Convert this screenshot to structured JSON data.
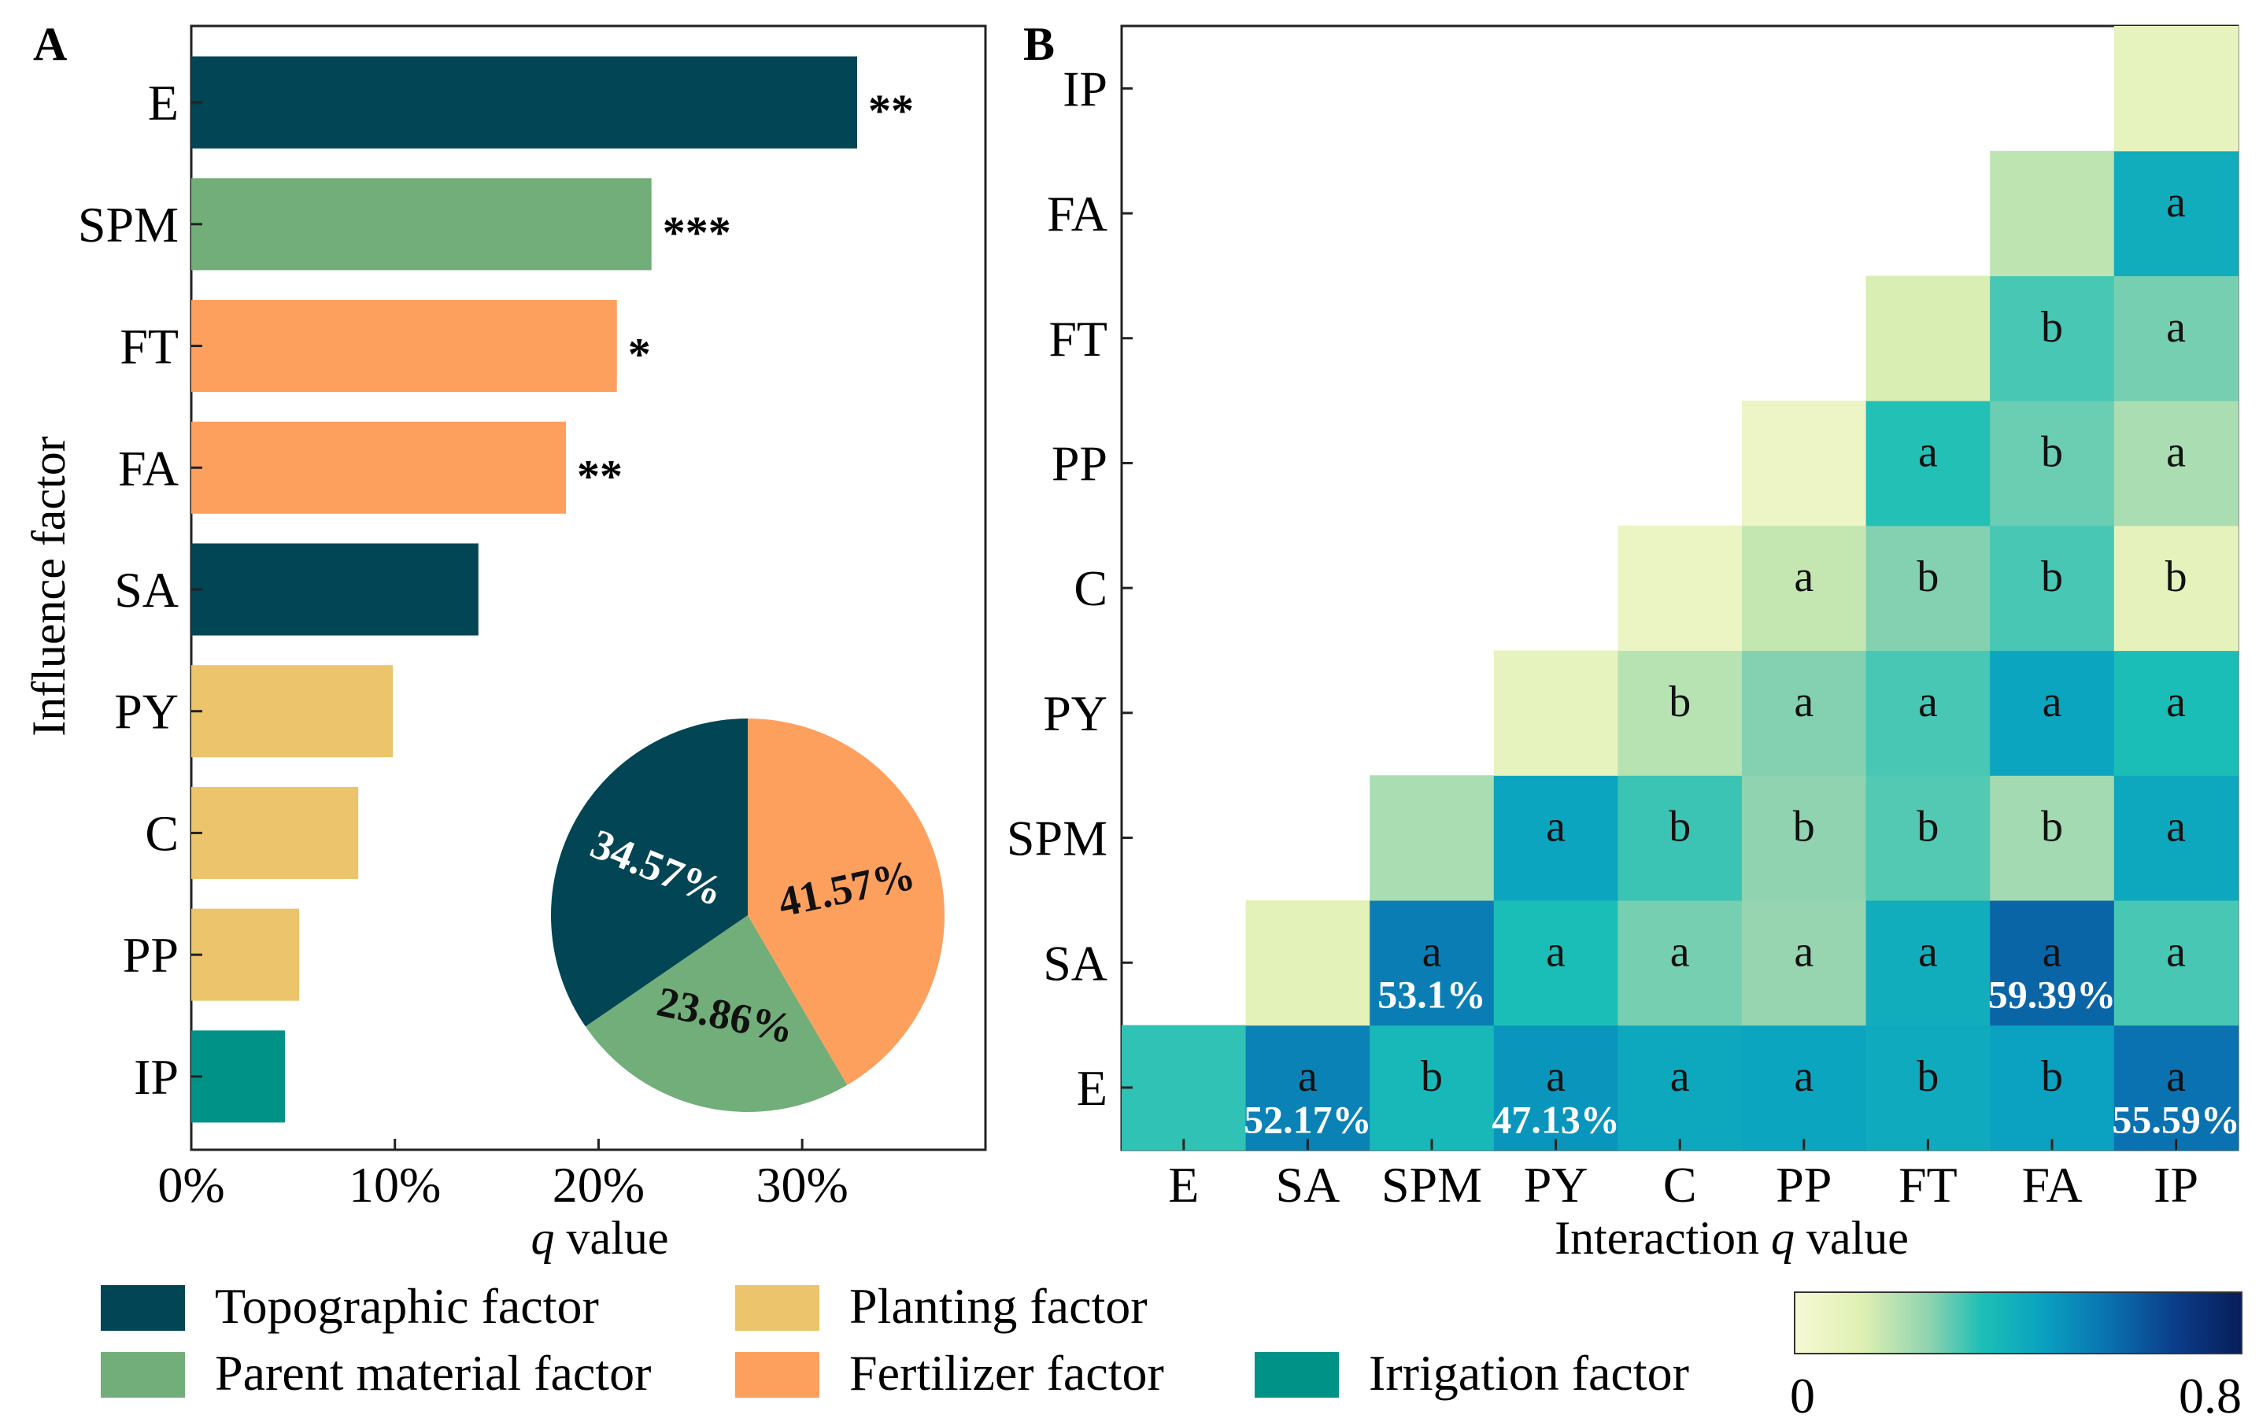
{
  "panel_a": {
    "letter": "A",
    "ylabel_pre": "Influence factor",
    "xlabel_italic": "q",
    "xlabel_rest": " value"
  },
  "panel_b": {
    "letter": "B",
    "xlabel_pre": "Interaction ",
    "xlabel_italic": "q",
    "xlabel_rest": " value"
  },
  "colors": {
    "topographic": "#024554",
    "parent": "#72AE79",
    "fertilizer": "#FDA05E",
    "planting": "#EBC46B",
    "irrigation": "#009287"
  },
  "chart_data": [
    {
      "type": "bar",
      "orientation": "horizontal",
      "title": "",
      "xlabel": "q value",
      "ylabel": "Influence factor",
      "categories": [
        "E",
        "SPM",
        "FT",
        "FA",
        "SA",
        "PY",
        "C",
        "PP",
        "IP"
      ],
      "values": [
        32.7,
        22.6,
        20.9,
        18.4,
        14.1,
        9.9,
        8.2,
        5.3,
        4.6
      ],
      "groups": [
        "topographic",
        "parent",
        "fertilizer",
        "fertilizer",
        "topographic",
        "planting",
        "planting",
        "planting",
        "irrigation"
      ],
      "significance": [
        "**",
        "***",
        "*",
        "**",
        "",
        "",
        "",
        "",
        ""
      ],
      "xlim": [
        0,
        39
      ],
      "xticks": [
        0,
        10,
        20,
        30
      ],
      "xtick_labels": [
        "0%",
        "10%",
        "20%",
        "30%"
      ]
    },
    {
      "type": "pie",
      "labels": [
        "Fertilizer factor",
        "Parent material factor",
        "Topographic factor"
      ],
      "values": [
        41.57,
        23.86,
        34.57
      ],
      "value_labels": [
        "41.57%",
        "23.86%",
        "34.57%"
      ],
      "groups": [
        "fertilizer",
        "parent",
        "topographic"
      ]
    },
    {
      "type": "heatmap",
      "xlabel": "Interaction q value",
      "x_categories": [
        "E",
        "SA",
        "SPM",
        "PY",
        "C",
        "PP",
        "FT",
        "FA",
        "IP"
      ],
      "y_categories": [
        "E",
        "SA",
        "SPM",
        "PY",
        "C",
        "PP",
        "FT",
        "FA",
        "IP"
      ],
      "colorbar": {
        "min": 0,
        "max": 0.8,
        "min_label": "0",
        "max_label": "0.8"
      },
      "cells": [
        {
          "x": "E",
          "y": "E",
          "v": 0.32,
          "letter": ""
        },
        {
          "x": "SA",
          "y": "E",
          "v": 0.52,
          "letter": "a",
          "pct": "52.17%"
        },
        {
          "x": "SPM",
          "y": "E",
          "v": 0.36,
          "letter": "b"
        },
        {
          "x": "PY",
          "y": "E",
          "v": 0.47,
          "letter": "a",
          "pct": "47.13%"
        },
        {
          "x": "C",
          "y": "E",
          "v": 0.42,
          "letter": "a"
        },
        {
          "x": "PP",
          "y": "E",
          "v": 0.43,
          "letter": "a"
        },
        {
          "x": "FT",
          "y": "E",
          "v": 0.41,
          "letter": "b"
        },
        {
          "x": "FA",
          "y": "E",
          "v": 0.44,
          "letter": "b"
        },
        {
          "x": "IP",
          "y": "E",
          "v": 0.56,
          "letter": "a",
          "pct": "55.59%"
        },
        {
          "x": "SA",
          "y": "SA",
          "v": 0.1,
          "letter": ""
        },
        {
          "x": "SPM",
          "y": "SA",
          "v": 0.53,
          "letter": "a",
          "pct": "53.1%"
        },
        {
          "x": "PY",
          "y": "SA",
          "v": 0.34,
          "letter": "a"
        },
        {
          "x": "C",
          "y": "SA",
          "v": 0.26,
          "letter": "a"
        },
        {
          "x": "PP",
          "y": "SA",
          "v": 0.23,
          "letter": "a"
        },
        {
          "x": "FT",
          "y": "SA",
          "v": 0.4,
          "letter": "a"
        },
        {
          "x": "FA",
          "y": "SA",
          "v": 0.59,
          "letter": "a",
          "pct": "59.39%"
        },
        {
          "x": "IP",
          "y": "SA",
          "v": 0.3,
          "letter": "a"
        },
        {
          "x": "SPM",
          "y": "SPM",
          "v": 0.2,
          "letter": ""
        },
        {
          "x": "PY",
          "y": "SPM",
          "v": 0.43,
          "letter": "a"
        },
        {
          "x": "C",
          "y": "SPM",
          "v": 0.31,
          "letter": "b"
        },
        {
          "x": "PP",
          "y": "SPM",
          "v": 0.24,
          "letter": "b"
        },
        {
          "x": "FT",
          "y": "SPM",
          "v": 0.29,
          "letter": "b"
        },
        {
          "x": "FA",
          "y": "SPM",
          "v": 0.21,
          "letter": "b"
        },
        {
          "x": "IP",
          "y": "SPM",
          "v": 0.42,
          "letter": "a"
        },
        {
          "x": "PY",
          "y": "PY",
          "v": 0.08,
          "letter": ""
        },
        {
          "x": "C",
          "y": "PY",
          "v": 0.18,
          "letter": "b"
        },
        {
          "x": "PP",
          "y": "PY",
          "v": 0.25,
          "letter": "a"
        },
        {
          "x": "FT",
          "y": "PY",
          "v": 0.3,
          "letter": "a"
        },
        {
          "x": "FA",
          "y": "PY",
          "v": 0.43,
          "letter": "a"
        },
        {
          "x": "IP",
          "y": "PY",
          "v": 0.34,
          "letter": "a"
        },
        {
          "x": "C",
          "y": "C",
          "v": 0.06,
          "letter": ""
        },
        {
          "x": "PP",
          "y": "C",
          "v": 0.16,
          "letter": "a"
        },
        {
          "x": "FT",
          "y": "C",
          "v": 0.25,
          "letter": "b"
        },
        {
          "x": "FA",
          "y": "C",
          "v": 0.3,
          "letter": "b"
        },
        {
          "x": "IP",
          "y": "C",
          "v": 0.09,
          "letter": "b"
        },
        {
          "x": "PP",
          "y": "PP",
          "v": 0.05,
          "letter": ""
        },
        {
          "x": "FT",
          "y": "PP",
          "v": 0.33,
          "letter": "a"
        },
        {
          "x": "FA",
          "y": "PP",
          "v": 0.27,
          "letter": "b"
        },
        {
          "x": "IP",
          "y": "PP",
          "v": 0.2,
          "letter": "a"
        },
        {
          "x": "FT",
          "y": "FT",
          "v": 0.13,
          "letter": ""
        },
        {
          "x": "FA",
          "y": "FT",
          "v": 0.3,
          "letter": "b"
        },
        {
          "x": "IP",
          "y": "FT",
          "v": 0.26,
          "letter": "a"
        },
        {
          "x": "FA",
          "y": "FA",
          "v": 0.17,
          "letter": ""
        },
        {
          "x": "IP",
          "y": "FA",
          "v": 0.4,
          "letter": "a"
        },
        {
          "x": "IP",
          "y": "IP",
          "v": 0.08,
          "letter": ""
        }
      ]
    }
  ],
  "legend": [
    {
      "label": "Topographic factor",
      "group": "topographic"
    },
    {
      "label": "Planting factor",
      "group": "planting"
    },
    {
      "label": "Parent material factor",
      "group": "parent"
    },
    {
      "label": "Fertilizer factor",
      "group": "fertilizer"
    },
    {
      "label": "Irrigation factor",
      "group": "irrigation"
    }
  ]
}
